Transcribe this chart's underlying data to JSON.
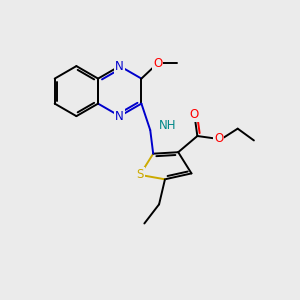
{
  "bg_color": "#ebebeb",
  "bond_color": "#000000",
  "n_color": "#0000cc",
  "o_color": "#ff0000",
  "s_color": "#ccaa00",
  "nh_color": "#008888",
  "lw": 1.4,
  "dbo": 0.07,
  "shrink": 0.1,
  "xlim": [
    0,
    10
  ],
  "ylim": [
    0,
    10
  ]
}
